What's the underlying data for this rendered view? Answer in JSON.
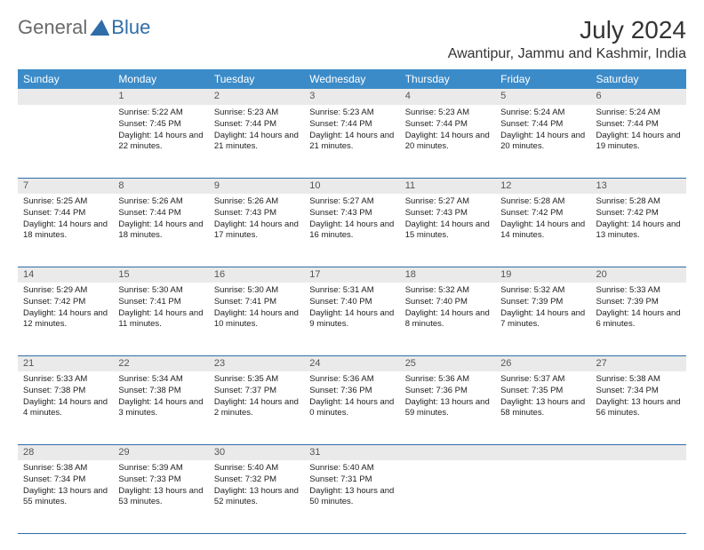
{
  "logo": {
    "word1": "General",
    "word2": "Blue"
  },
  "title": "July 2024",
  "location": "Awantipur, Jammu and Kashmir, India",
  "colors": {
    "header_bg": "#3b8bc9",
    "header_text": "#ffffff",
    "daynum_bg": "#eaeaea",
    "border": "#2f6da8",
    "body_text": "#222222"
  },
  "daysOfWeek": [
    "Sunday",
    "Monday",
    "Tuesday",
    "Wednesday",
    "Thursday",
    "Friday",
    "Saturday"
  ],
  "weeks": [
    {
      "nums": [
        "",
        "1",
        "2",
        "3",
        "4",
        "5",
        "6"
      ],
      "cells": [
        null,
        {
          "sunrise": "Sunrise: 5:22 AM",
          "sunset": "Sunset: 7:45 PM",
          "daylight": "Daylight: 14 hours and 22 minutes."
        },
        {
          "sunrise": "Sunrise: 5:23 AM",
          "sunset": "Sunset: 7:44 PM",
          "daylight": "Daylight: 14 hours and 21 minutes."
        },
        {
          "sunrise": "Sunrise: 5:23 AM",
          "sunset": "Sunset: 7:44 PM",
          "daylight": "Daylight: 14 hours and 21 minutes."
        },
        {
          "sunrise": "Sunrise: 5:23 AM",
          "sunset": "Sunset: 7:44 PM",
          "daylight": "Daylight: 14 hours and 20 minutes."
        },
        {
          "sunrise": "Sunrise: 5:24 AM",
          "sunset": "Sunset: 7:44 PM",
          "daylight": "Daylight: 14 hours and 20 minutes."
        },
        {
          "sunrise": "Sunrise: 5:24 AM",
          "sunset": "Sunset: 7:44 PM",
          "daylight": "Daylight: 14 hours and 19 minutes."
        }
      ]
    },
    {
      "nums": [
        "7",
        "8",
        "9",
        "10",
        "11",
        "12",
        "13"
      ],
      "cells": [
        {
          "sunrise": "Sunrise: 5:25 AM",
          "sunset": "Sunset: 7:44 PM",
          "daylight": "Daylight: 14 hours and 18 minutes."
        },
        {
          "sunrise": "Sunrise: 5:26 AM",
          "sunset": "Sunset: 7:44 PM",
          "daylight": "Daylight: 14 hours and 18 minutes."
        },
        {
          "sunrise": "Sunrise: 5:26 AM",
          "sunset": "Sunset: 7:43 PM",
          "daylight": "Daylight: 14 hours and 17 minutes."
        },
        {
          "sunrise": "Sunrise: 5:27 AM",
          "sunset": "Sunset: 7:43 PM",
          "daylight": "Daylight: 14 hours and 16 minutes."
        },
        {
          "sunrise": "Sunrise: 5:27 AM",
          "sunset": "Sunset: 7:43 PM",
          "daylight": "Daylight: 14 hours and 15 minutes."
        },
        {
          "sunrise": "Sunrise: 5:28 AM",
          "sunset": "Sunset: 7:42 PM",
          "daylight": "Daylight: 14 hours and 14 minutes."
        },
        {
          "sunrise": "Sunrise: 5:28 AM",
          "sunset": "Sunset: 7:42 PM",
          "daylight": "Daylight: 14 hours and 13 minutes."
        }
      ]
    },
    {
      "nums": [
        "14",
        "15",
        "16",
        "17",
        "18",
        "19",
        "20"
      ],
      "cells": [
        {
          "sunrise": "Sunrise: 5:29 AM",
          "sunset": "Sunset: 7:42 PM",
          "daylight": "Daylight: 14 hours and 12 minutes."
        },
        {
          "sunrise": "Sunrise: 5:30 AM",
          "sunset": "Sunset: 7:41 PM",
          "daylight": "Daylight: 14 hours and 11 minutes."
        },
        {
          "sunrise": "Sunrise: 5:30 AM",
          "sunset": "Sunset: 7:41 PM",
          "daylight": "Daylight: 14 hours and 10 minutes."
        },
        {
          "sunrise": "Sunrise: 5:31 AM",
          "sunset": "Sunset: 7:40 PM",
          "daylight": "Daylight: 14 hours and 9 minutes."
        },
        {
          "sunrise": "Sunrise: 5:32 AM",
          "sunset": "Sunset: 7:40 PM",
          "daylight": "Daylight: 14 hours and 8 minutes."
        },
        {
          "sunrise": "Sunrise: 5:32 AM",
          "sunset": "Sunset: 7:39 PM",
          "daylight": "Daylight: 14 hours and 7 minutes."
        },
        {
          "sunrise": "Sunrise: 5:33 AM",
          "sunset": "Sunset: 7:39 PM",
          "daylight": "Daylight: 14 hours and 6 minutes."
        }
      ]
    },
    {
      "nums": [
        "21",
        "22",
        "23",
        "24",
        "25",
        "26",
        "27"
      ],
      "cells": [
        {
          "sunrise": "Sunrise: 5:33 AM",
          "sunset": "Sunset: 7:38 PM",
          "daylight": "Daylight: 14 hours and 4 minutes."
        },
        {
          "sunrise": "Sunrise: 5:34 AM",
          "sunset": "Sunset: 7:38 PM",
          "daylight": "Daylight: 14 hours and 3 minutes."
        },
        {
          "sunrise": "Sunrise: 5:35 AM",
          "sunset": "Sunset: 7:37 PM",
          "daylight": "Daylight: 14 hours and 2 minutes."
        },
        {
          "sunrise": "Sunrise: 5:36 AM",
          "sunset": "Sunset: 7:36 PM",
          "daylight": "Daylight: 14 hours and 0 minutes."
        },
        {
          "sunrise": "Sunrise: 5:36 AM",
          "sunset": "Sunset: 7:36 PM",
          "daylight": "Daylight: 13 hours and 59 minutes."
        },
        {
          "sunrise": "Sunrise: 5:37 AM",
          "sunset": "Sunset: 7:35 PM",
          "daylight": "Daylight: 13 hours and 58 minutes."
        },
        {
          "sunrise": "Sunrise: 5:38 AM",
          "sunset": "Sunset: 7:34 PM",
          "daylight": "Daylight: 13 hours and 56 minutes."
        }
      ]
    },
    {
      "nums": [
        "28",
        "29",
        "30",
        "31",
        "",
        "",
        ""
      ],
      "cells": [
        {
          "sunrise": "Sunrise: 5:38 AM",
          "sunset": "Sunset: 7:34 PM",
          "daylight": "Daylight: 13 hours and 55 minutes."
        },
        {
          "sunrise": "Sunrise: 5:39 AM",
          "sunset": "Sunset: 7:33 PM",
          "daylight": "Daylight: 13 hours and 53 minutes."
        },
        {
          "sunrise": "Sunrise: 5:40 AM",
          "sunset": "Sunset: 7:32 PM",
          "daylight": "Daylight: 13 hours and 52 minutes."
        },
        {
          "sunrise": "Sunrise: 5:40 AM",
          "sunset": "Sunset: 7:31 PM",
          "daylight": "Daylight: 13 hours and 50 minutes."
        },
        null,
        null,
        null
      ]
    }
  ]
}
